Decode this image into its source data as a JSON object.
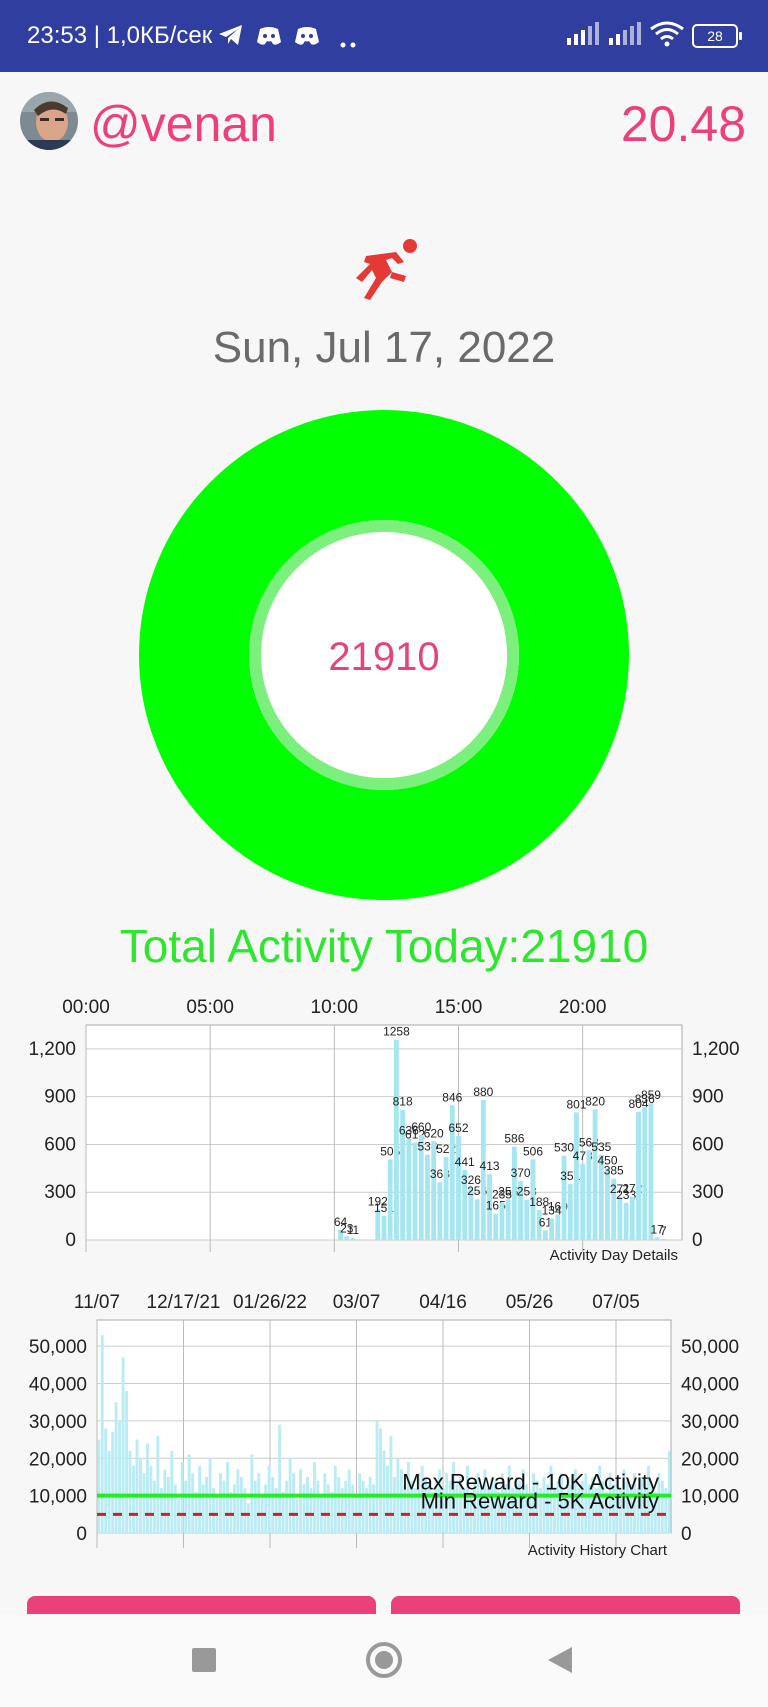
{
  "status_bar": {
    "time_text": "23:53 | 1,0КБ/сек",
    "battery": "28",
    "icons": [
      "telegram-icon",
      "discord-icon",
      "discord-icon",
      "more-dots-icon",
      "signal-icon",
      "signal-icon",
      "wifi-icon",
      "battery-icon"
    ]
  },
  "header": {
    "username": "@venan",
    "balance": "20.48"
  },
  "activity": {
    "date": "Sun, Jul 17, 2022",
    "ring_value": "21910",
    "ring_progress": 1.0,
    "total_label": "Total Activity Today:21910"
  },
  "colors": {
    "accent": "#ec407a",
    "green": "#00ff00",
    "bar": "#a6e6f0",
    "header_bar": "#303f9f"
  },
  "chart_data": [
    {
      "type": "bar",
      "title": "Activity Day Details",
      "x_tick_labels": [
        "00:00",
        "05:00",
        "10:00",
        "15:00",
        "20:00"
      ],
      "y_tick_labels": [
        "0",
        "300",
        "600",
        "900",
        "1,200"
      ],
      "ylim": [
        0,
        1350
      ],
      "grid": true,
      "x_unit": "hours",
      "x": [
        10.25,
        10.5,
        10.75,
        11.75,
        12.0,
        12.25,
        12.5,
        12.75,
        13.0,
        13.25,
        13.5,
        13.75,
        14.0,
        14.25,
        14.5,
        14.75,
        15.0,
        15.25,
        15.5,
        15.75,
        16.0,
        16.25,
        16.5,
        16.75,
        17.0,
        17.25,
        17.5,
        17.75,
        18.0,
        18.25,
        18.5,
        18.75,
        19.0,
        19.25,
        19.5,
        19.75,
        20.0,
        20.25,
        20.5,
        20.75,
        21.0,
        21.25,
        21.5,
        21.75,
        22.0,
        22.25,
        22.5,
        22.75,
        23.0,
        23.25,
        23.5
      ],
      "values": [
        64,
        23,
        11,
        192,
        151,
        505,
        1258,
        818,
        636,
        612,
        660,
        536,
        620,
        363,
        522,
        846,
        652,
        441,
        326,
        256,
        880,
        413,
        165,
        235,
        255,
        586,
        370,
        253,
        506,
        188,
        61,
        134,
        160,
        530,
        351,
        801,
        478,
        563,
        820,
        535,
        450,
        385,
        271,
        233,
        272,
        804,
        836,
        859,
        17,
        7,
        0
      ],
      "labels": [
        "64",
        "23",
        "11",
        "192",
        "151",
        "505",
        "1258",
        "818",
        "636",
        "612",
        "660",
        "536",
        "620",
        "363",
        "522",
        "846",
        "652",
        "441",
        "326",
        "256",
        "880",
        "413",
        "165",
        "235",
        "255",
        "586",
        "370",
        "253",
        "506",
        "188",
        "61",
        "134",
        "160",
        "530",
        "351",
        "801",
        "478",
        "563",
        "820",
        "535",
        "450",
        "385",
        "271",
        "233",
        "272",
        "804",
        "836",
        "859",
        "17",
        "7",
        ""
      ]
    },
    {
      "type": "bar",
      "title": "Activity History Chart",
      "x_tick_labels": [
        "11/07",
        "12/17/21",
        "01/26/22",
        "03/07",
        "04/16",
        "05/26",
        "07/05"
      ],
      "y_tick_labels": [
        "0",
        "10,000",
        "20,000",
        "30,000",
        "40,000",
        "50,000"
      ],
      "ylim": [
        0,
        57000
      ],
      "grid": true,
      "reference_lines": [
        {
          "name": "Max Reward - 10K Activity",
          "value": 10000,
          "style": "solid",
          "color": "#22ee22"
        },
        {
          "name": "Min Reward - 5K Activity",
          "value": 5000,
          "style": "dashed",
          "color": "#cc2222"
        }
      ],
      "series": [
        {
          "values": [
            25000,
            53000,
            28000,
            22000,
            27000,
            35000,
            30000,
            47000,
            38000,
            22000,
            18000,
            25000,
            20000,
            16000,
            24000,
            18000,
            14000,
            26000,
            12000,
            17000,
            15000,
            22000,
            13000,
            9000,
            19000,
            14000,
            21000,
            16000,
            11000,
            18000,
            13000,
            15000,
            20000,
            12000,
            10000,
            16000,
            14000,
            19000,
            11000,
            13000,
            17000,
            15000,
            12000,
            8000,
            21000,
            14000,
            16000,
            10000,
            13000,
            18000,
            15000,
            12000,
            29000,
            11000,
            14000,
            20000,
            16000,
            9000,
            17000,
            13000,
            15000,
            12000,
            19000,
            14000,
            10000,
            16000,
            13000,
            11000,
            18000,
            15000,
            12000,
            14000,
            17000,
            13000,
            10000,
            16000,
            14000,
            12000,
            15000,
            13000,
            30000,
            28000,
            22000,
            18000,
            26000,
            15000,
            20000,
            17000,
            13000,
            19000,
            14000,
            12000,
            16000,
            18000,
            15000,
            13000,
            11000,
            14000,
            17000,
            12000,
            16000,
            14000,
            19000,
            13000,
            15000,
            12000,
            18000,
            11000,
            14000,
            16000,
            13000,
            17000,
            12000,
            15000,
            14000,
            11000,
            16000,
            13000,
            18000,
            12000,
            15000,
            14000,
            17000,
            13000,
            11000,
            16000,
            14000,
            12000,
            15000,
            13000,
            18000,
            12000,
            14000,
            16000,
            11000,
            15000,
            13000,
            17000,
            12000,
            14000,
            16000,
            13000,
            15000,
            12000,
            18000,
            14000,
            11000,
            16000,
            13000,
            15000,
            12000,
            17000,
            14000,
            13000,
            16000,
            12000,
            15000,
            14000,
            18000,
            13000,
            11000,
            16000,
            14000,
            12000,
            21910
          ]
        }
      ]
    }
  ],
  "buttons": [
    {
      "name": "left-action-button"
    },
    {
      "name": "right-action-button"
    }
  ],
  "navbar": {
    "icons": [
      "recents-square-icon",
      "home-circle-icon",
      "back-triangle-icon"
    ]
  }
}
